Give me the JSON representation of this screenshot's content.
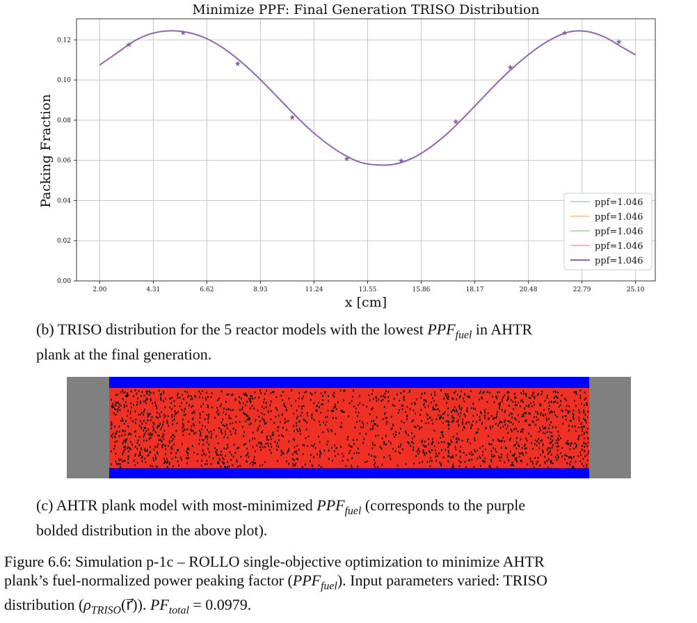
{
  "chart_data": {
    "type": "line",
    "title": "Minimize PPF: Final Generation TRISO Distribution",
    "xlabel": "x [cm]",
    "ylabel": "Packing Fraction",
    "x_ticks": [
      "2.00",
      "4.31",
      "6.62",
      "8.93",
      "11.24",
      "13.55",
      "15.86",
      "18.17",
      "20.48",
      "22.79",
      "25.10"
    ],
    "y_ticks": [
      "0.00",
      "0.02",
      "0.04",
      "0.06",
      "0.08",
      "0.10",
      "0.12"
    ],
    "xlim": [
      1.0,
      25.95
    ],
    "ylim": [
      0,
      0.1305
    ],
    "grid": true,
    "legend_position": "lower-right",
    "series": [
      {
        "name": "ppf=1.046",
        "color": "#aec7e8"
      },
      {
        "name": "ppf=1.046",
        "color": "#ffbb78"
      },
      {
        "name": "ppf=1.046",
        "color": "#98df8a"
      },
      {
        "name": "ppf=1.046",
        "color": "#ff9896"
      },
      {
        "name": "ppf=1.046",
        "color": "#8e65ad"
      }
    ],
    "curve": {
      "x": [
        2.0,
        2.75,
        3.5,
        4.25,
        5.0,
        5.75,
        6.5,
        7.25,
        8.0,
        8.75,
        9.5,
        10.25,
        11.0,
        11.75,
        12.5,
        13.25,
        14.0,
        14.75,
        15.5,
        16.25,
        17.0,
        17.75,
        18.5,
        19.25,
        20.0,
        20.75,
        21.5,
        22.25,
        23.0,
        23.75,
        24.5,
        25.1
      ],
      "y": [
        0.1075,
        0.1135,
        0.1195,
        0.1232,
        0.1245,
        0.1238,
        0.1212,
        0.1165,
        0.11,
        0.1022,
        0.0935,
        0.0845,
        0.076,
        0.0688,
        0.063,
        0.059,
        0.0577,
        0.0582,
        0.0612,
        0.0665,
        0.0735,
        0.082,
        0.091,
        0.1,
        0.108,
        0.115,
        0.1205,
        0.124,
        0.1242,
        0.1215,
        0.1165,
        0.1125
      ]
    },
    "markers": {
      "x": [
        3.26,
        5.6,
        7.95,
        10.3,
        12.65,
        15.0,
        17.35,
        19.7,
        22.05,
        24.38
      ],
      "y": [
        0.1176,
        0.1235,
        0.1081,
        0.0814,
        0.0607,
        0.0598,
        0.0792,
        0.1063,
        0.1234,
        0.119
      ]
    }
  },
  "captions": {
    "b_label": "(b) TRISO distribution for the 5 reactor models with the lowest",
    "b_math": "PPF",
    "b_sub": "fuel",
    "b_rest1": " in AHTR",
    "b_rest2": "plank at the final generation.",
    "c_label": "(c) AHTR plank model with most-minimized",
    "c_math": "PPF",
    "c_sub": "fuel",
    "c_rest1": " (corresponds to the purple",
    "c_rest2": "bolded distribution in the above plot).",
    "fig_1": "Figure 6.6: Simulation p-1c – ROLLO single-objective optimization to minimize AHTR",
    "fig_2a": "plank’s fuel-normalized power peaking factor (",
    "fig_2m": "PPF",
    "fig_2s": "fuel",
    "fig_2b": "). Input parameters varied: TRISO",
    "fig_3a": "distribution (",
    "fig_3m": "ρ",
    "fig_3s": "TRISO",
    "fig_3r": "(r⃗)). ",
    "fig_3p": "PF",
    "fig_3ps": "total",
    "fig_3v": " = 0.0979."
  },
  "plank": {
    "colors": {
      "reflector": "#808080",
      "coolant": "#0000ff",
      "fuel": "#ee3124",
      "triso": "#000000"
    }
  }
}
